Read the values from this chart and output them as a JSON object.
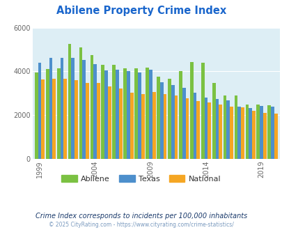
{
  "title": "Abilene Property Crime Index",
  "title_color": "#1a66cc",
  "years": [
    1999,
    2000,
    2001,
    2002,
    2003,
    2004,
    2005,
    2006,
    2007,
    2008,
    2009,
    2010,
    2011,
    2012,
    2013,
    2014,
    2015,
    2016,
    2017,
    2018,
    2019,
    2020
  ],
  "abilene": [
    3950,
    4100,
    4150,
    5250,
    5080,
    4750,
    4300,
    4290,
    4150,
    4130,
    4170,
    3750,
    3650,
    4000,
    4440,
    4380,
    3480,
    2900,
    2900,
    2480,
    2490,
    2450
  ],
  "texas": [
    4400,
    4600,
    4620,
    4620,
    4520,
    4320,
    4050,
    4070,
    4000,
    3950,
    4080,
    3500,
    3380,
    3250,
    3020,
    2800,
    2720,
    2680,
    2380,
    2330,
    2420,
    2380
  ],
  "national": [
    3620,
    3660,
    3660,
    3600,
    3480,
    3460,
    3300,
    3210,
    3010,
    2960,
    3060,
    2960,
    2900,
    2760,
    2630,
    2560,
    2490,
    2380,
    2340,
    2200,
    2100,
    2050
  ],
  "abilene_color": "#7bc142",
  "texas_color": "#4d8fcc",
  "national_color": "#f5a623",
  "bg_color": "#ddeef5",
  "ylim": [
    0,
    6000
  ],
  "yticks": [
    0,
    2000,
    4000,
    6000
  ],
  "xtick_years": [
    1999,
    2004,
    2009,
    2014,
    2019
  ],
  "subtitle": "Crime Index corresponds to incidents per 100,000 inhabitants",
  "footer": "© 2025 CityRating.com - https://www.cityrating.com/crime-statistics/",
  "subtitle_color": "#1a3a6b",
  "footer_color": "#7a9abf"
}
